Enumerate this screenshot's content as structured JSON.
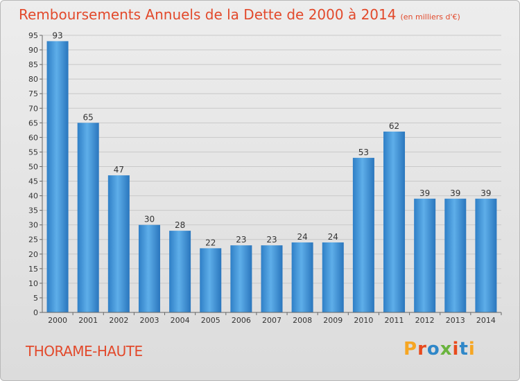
{
  "title": "Remboursements Annuels de la Dette de 2000 à 2014",
  "subtitle": "(en milliers d'€)",
  "place": "THORAME-HAUTE",
  "logo": [
    "P",
    "r",
    "o",
    "x",
    "i",
    "t",
    "i"
  ],
  "colors": {
    "bar": "#3a8fd8",
    "bar_light": "#6cb6ee",
    "title": "#e2492b",
    "grid": "#c8c8c8"
  },
  "chart_data": {
    "type": "bar",
    "categories": [
      "2000",
      "2001",
      "2002",
      "2003",
      "2004",
      "2005",
      "2006",
      "2007",
      "2008",
      "2009",
      "2010",
      "2011",
      "2012",
      "2013",
      "2014"
    ],
    "values": [
      93,
      65,
      47,
      30,
      28,
      22,
      23,
      23,
      24,
      24,
      53,
      62,
      39,
      39,
      39
    ],
    "ylim": [
      0,
      95
    ],
    "yticks": [
      0,
      5,
      10,
      15,
      20,
      25,
      30,
      35,
      40,
      45,
      50,
      55,
      60,
      65,
      70,
      75,
      80,
      85,
      90,
      95
    ],
    "grid": true
  }
}
